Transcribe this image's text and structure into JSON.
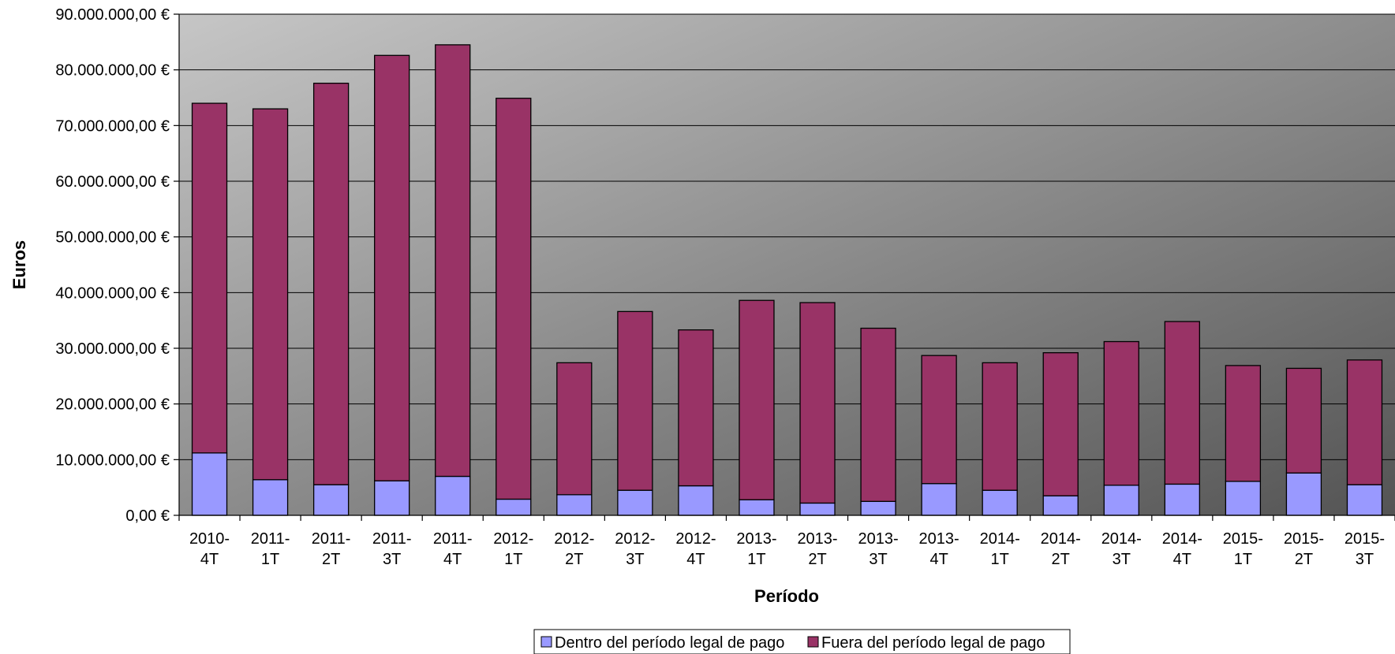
{
  "chart_data": {
    "type": "bar",
    "stacked": true,
    "title": "",
    "xlabel": "Período",
    "ylabel": "Euros",
    "ylim": [
      0,
      90000000
    ],
    "ytick_step": 10000000,
    "ytick_labels": [
      "0,00 €",
      "10.000.000,00 €",
      "20.000.000,00 €",
      "30.000.000,00 €",
      "40.000.000,00 €",
      "50.000.000,00 €",
      "60.000.000,00 €",
      "70.000.000,00 €",
      "80.000.000,00 €",
      "90.000.000,00 €"
    ],
    "grid": true,
    "legend_position": "bottom",
    "categories": [
      [
        "2010-",
        "4T"
      ],
      [
        "2011-",
        "1T"
      ],
      [
        "2011-",
        "2T"
      ],
      [
        "2011-",
        "3T"
      ],
      [
        "2011-",
        "4T"
      ],
      [
        "2012-",
        "1T"
      ],
      [
        "2012-",
        "2T"
      ],
      [
        "2012-",
        "3T"
      ],
      [
        "2012-",
        "4T"
      ],
      [
        "2013-",
        "1T"
      ],
      [
        "2013-",
        "2T"
      ],
      [
        "2013-",
        "3T"
      ],
      [
        "2013-",
        "4T"
      ],
      [
        "2014-",
        "1T"
      ],
      [
        "2014-",
        "2T"
      ],
      [
        "2014-",
        "3T"
      ],
      [
        "2014-",
        "4T"
      ],
      [
        "2015-",
        "1T"
      ],
      [
        "2015-",
        "2T"
      ],
      [
        "2015-",
        "3T"
      ]
    ],
    "series": [
      {
        "name": "Dentro del período legal de pago",
        "color": "#9999ff",
        "values": [
          11200000,
          6400000,
          5500000,
          6200000,
          7000000,
          2900000,
          3700000,
          4500000,
          5300000,
          2800000,
          2200000,
          2500000,
          5700000,
          4500000,
          3500000,
          5400000,
          5600000,
          6100000,
          7600000,
          5500000
        ]
      },
      {
        "name": "Fuera del período legal de pago",
        "color": "#993366",
        "values": [
          62800000,
          66600000,
          72100000,
          76400000,
          77500000,
          72000000,
          23700000,
          32100000,
          28000000,
          35800000,
          36000000,
          31100000,
          23000000,
          22900000,
          25700000,
          25800000,
          29200000,
          20800000,
          18800000,
          22400000
        ]
      }
    ]
  },
  "colors": {
    "plot_gradient_light": "#c6c6c6",
    "plot_gradient_dark": "#545454",
    "gridline": "#000000",
    "bar_outline": "#000000"
  }
}
